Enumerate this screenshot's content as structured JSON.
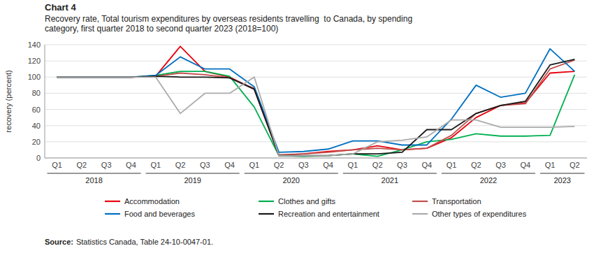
{
  "chart_data": {
    "type": "line",
    "title": "Chart 4",
    "subtitle": [
      "Recovery rate, Total tourism expenditures by overseas residents travelling  to Canada, by spending",
      "category, first quarter 2018 to second quarter 2023 (2018=100)"
    ],
    "y_label": "recovery (percent)",
    "source": {
      "label": "Source:",
      "text": "Statistics Canada, Table 24-10-0047-01."
    },
    "categories": [
      "Q1",
      "Q2",
      "Q3",
      "Q4",
      "Q1",
      "Q2",
      "Q3",
      "Q4",
      "Q1",
      "Q2",
      "Q3",
      "Q4",
      "Q1",
      "Q2",
      "Q3",
      "Q4",
      "Q1",
      "Q2",
      "Q3",
      "Q4",
      "Q1",
      "Q2"
    ],
    "year_groups": [
      {
        "label": "2018",
        "indices": [
          0,
          1,
          2,
          3
        ]
      },
      {
        "label": "2019",
        "indices": [
          4,
          5,
          6,
          7
        ]
      },
      {
        "label": "2020",
        "indices": [
          8,
          9,
          10,
          11
        ]
      },
      {
        "label": "2021",
        "indices": [
          12,
          13,
          14,
          15
        ]
      },
      {
        "label": "2022",
        "indices": [
          16,
          17,
          18,
          19
        ]
      },
      {
        "label": "2023",
        "indices": [
          20,
          21
        ]
      }
    ],
    "series": [
      {
        "name": "Accommodation",
        "color": "#e8000d",
        "values": [
          100,
          100,
          100,
          100,
          101,
          138,
          107,
          100,
          85,
          3,
          5,
          8,
          10,
          15,
          10,
          12,
          25,
          50,
          65,
          68,
          105,
          107
        ]
      },
      {
        "name": "Clothes and gifts",
        "color": "#00b050",
        "values": [
          100,
          100,
          100,
          100,
          102,
          107,
          107,
          101,
          63,
          3,
          2,
          3,
          5,
          2,
          10,
          20,
          23,
          30,
          27,
          27,
          28,
          103
        ]
      },
      {
        "name": "Transportation",
        "color": "#c0504d",
        "values": [
          100,
          100,
          100,
          100,
          101,
          105,
          103,
          99,
          86,
          4,
          5,
          7,
          10,
          12,
          10,
          12,
          28,
          55,
          65,
          67,
          110,
          121
        ]
      },
      {
        "name": "Food and beverages",
        "color": "#0070c0",
        "values": [
          100,
          100,
          100,
          100,
          102,
          125,
          110,
          110,
          88,
          7,
          8,
          11,
          21,
          21,
          16,
          16,
          48,
          90,
          75,
          80,
          135,
          107
        ]
      },
      {
        "name": "Recreation and entertainment",
        "color": "#1a1a1a",
        "values": [
          100,
          100,
          100,
          100,
          101,
          100,
          100,
          99,
          85,
          3,
          3,
          3,
          5,
          5,
          7,
          35,
          35,
          55,
          65,
          70,
          115,
          122
        ]
      },
      {
        "name": "Other types of expenditures",
        "color": "#ababab",
        "values": [
          100,
          100,
          100,
          100,
          100,
          55,
          80,
          80,
          100,
          3,
          3,
          3,
          5,
          20,
          22,
          26,
          47,
          47,
          38,
          38,
          38,
          39
        ]
      }
    ],
    "ylim": [
      0,
      140
    ],
    "yticks": [
      0,
      20,
      40,
      60,
      80,
      100,
      120,
      140
    ],
    "grid": true,
    "legend": "bottom"
  }
}
